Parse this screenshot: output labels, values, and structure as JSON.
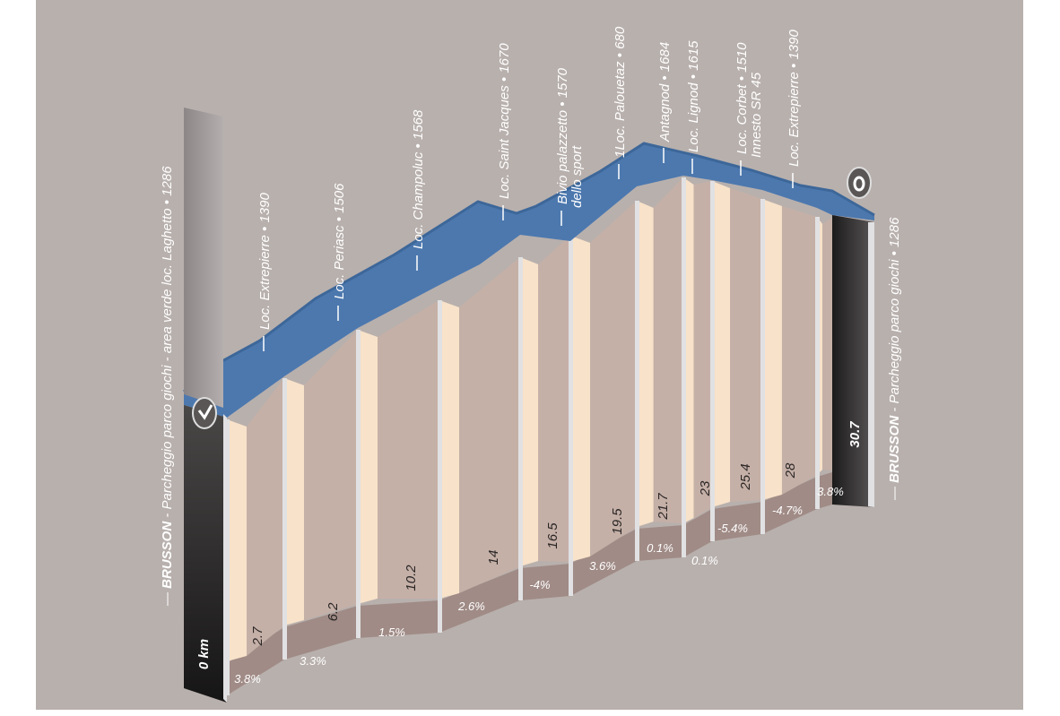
{
  "chart_data": {
    "type": "area",
    "title": "",
    "xlabel": "",
    "ylabel": "",
    "x_unit": "km",
    "start": {
      "km_label": "0 km",
      "name": "BRUSSON",
      "desc": "Parcheggio parco giochi - area verde loc. Laghetto",
      "altitude": "1286"
    },
    "end": {
      "km_label": "30.7",
      "name": "BRUSSON",
      "desc": "Parcheggio parco giochi",
      "altitude": "1286"
    },
    "waypoints": [
      {
        "km": "2.7",
        "lines": [
          "Loc. Extrepierre • 1390"
        ]
      },
      {
        "km": "6.2",
        "lines": [
          "Loc. Periasc • 1506"
        ]
      },
      {
        "km": "10.2",
        "lines": [
          "Loc. Champoluc • 1568"
        ]
      },
      {
        "km": "14",
        "lines": [
          "Loc. Saint Jacques • 1670"
        ]
      },
      {
        "km": "16.5",
        "lines": [
          "Bivio palazzetto • 1570",
          "dello sport"
        ]
      },
      {
        "km": "19.5",
        "lines": [
          "1Loc. Palouetaz • 680"
        ]
      },
      {
        "km": "21.7",
        "lines": [
          "Antagnod • 1684"
        ]
      },
      {
        "km": "23",
        "lines": [
          "Loc. Lignod • 1615"
        ]
      },
      {
        "km": "25.4",
        "lines": [
          "Loc. Corbet • 1510",
          "Innesto SR 45"
        ]
      },
      {
        "km": "28",
        "lines": [
          "Loc. Extrepierre • 1390"
        ]
      }
    ],
    "gradients": [
      "3.8%",
      "3.3%",
      "1.5%",
      "2.6%",
      "-4%",
      "3.6%",
      "0.1%",
      "0.1%",
      "-5.4%",
      "-4.7%",
      "3.8%"
    ],
    "start_icon": "check-icon",
    "end_icon": "circle-finish-icon"
  },
  "colors": {
    "background": "#b8b0ad",
    "ribbon": "#4c78ae",
    "ribbon_top": "#3d6799",
    "cream": "#f8e2c9",
    "mauve": "#c5b0a7",
    "floor": "#a08b86",
    "separator": "#e1e1e3",
    "dark_bar": "#2d2b2b",
    "grey_bar": "#8f898a"
  }
}
